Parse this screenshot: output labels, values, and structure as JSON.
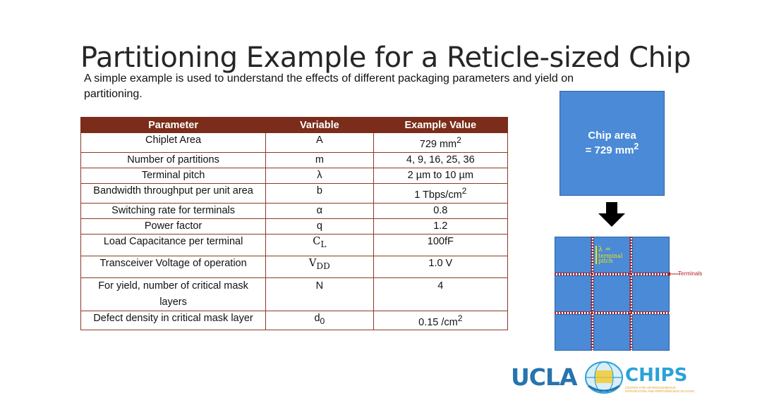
{
  "slide": {
    "title": "Partitioning Example for a Reticle-sized Chip",
    "subtitle": "A simple example is used to understand the effects of different packaging parameters and yield on partitioning."
  },
  "table": {
    "headers": [
      "Parameter",
      "Variable",
      "Example Value"
    ],
    "rows": [
      {
        "parameter": "Chiplet Area",
        "variable": "A",
        "value": "729 mm",
        "value_sup": "2"
      },
      {
        "parameter": "Number of partitions",
        "variable": "m",
        "value": "4, 9, 16, 25, 36"
      },
      {
        "parameter": "Terminal pitch",
        "variable": "λ",
        "value": "2 µm to 10 µm"
      },
      {
        "parameter": "Bandwidth throughput per unit area",
        "variable": "b",
        "value": "1 Tbps/cm",
        "value_sup": "2"
      },
      {
        "parameter": "Switching rate for terminals",
        "variable": "α",
        "value": "0.8"
      },
      {
        "parameter": "Power factor",
        "variable": "q",
        "value": "1.2"
      },
      {
        "parameter": "Load Capacitance per terminal",
        "variable": "C",
        "variable_sub": "L",
        "value": "100fF"
      },
      {
        "parameter": "Transceiver Voltage of operation",
        "variable": "V",
        "variable_sub": "DD",
        "value": "1.0 V"
      },
      {
        "parameter": "For yield, number of critical mask layers",
        "variable": "N",
        "value": "4"
      },
      {
        "parameter": "Defect density in critical mask layer",
        "variable": "d",
        "variable_sub": "0",
        "value": "0.15 /cm",
        "value_sup": "2"
      }
    ]
  },
  "diagram": {
    "chip_label_line1": "Chip area",
    "chip_label_line2": "= 729 mm",
    "chip_label_sup": "2",
    "lambda_symbol": "λ =",
    "lambda_line2": "terminal",
    "lambda_line3": "pitch",
    "terminals_label": "Terminals",
    "colors": {
      "chip": "#4a8ad6",
      "terminal_marks": "#b21f24",
      "lambda": "#f2e60a"
    }
  },
  "logo": {
    "ucla": "UCLA",
    "chips": "CHIPS",
    "tagline": "CENTER FOR HETEROGENEOUS INTEGRATION AND PERFORMANCE SCALING"
  }
}
